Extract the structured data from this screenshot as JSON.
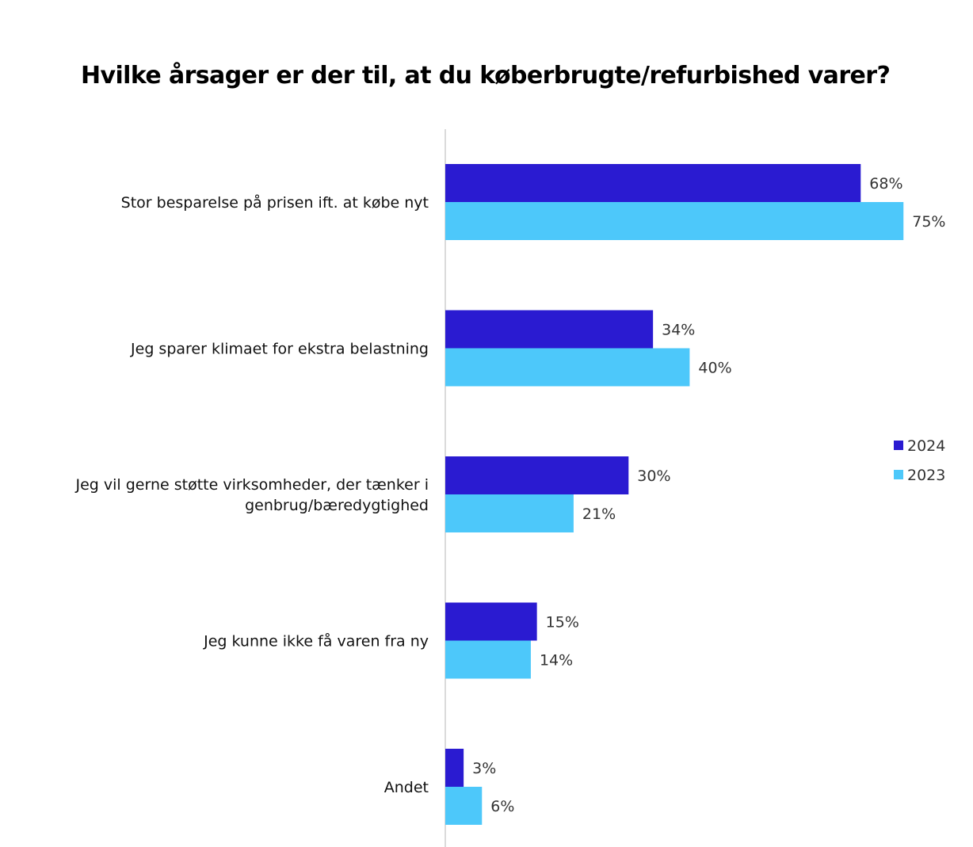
{
  "chart_data": {
    "type": "bar",
    "orientation": "horizontal",
    "title": "Hvilke årsager er der til, at du køberbrugte/refurbished varer?",
    "categories": [
      [
        "Stor besparelse på prisen ift. at købe nyt"
      ],
      [
        "Jeg sparer klimaet for ekstra belastning"
      ],
      [
        "Jeg vil gerne støtte virksomheder, der tænker i",
        "genbrug/bæredygtighed"
      ],
      [
        "Jeg kunne ikke få varen fra ny"
      ],
      [
        "Andet"
      ]
    ],
    "series": [
      {
        "name": "2024",
        "color": "#2a1bd1",
        "values": [
          68,
          34,
          30,
          15,
          3
        ],
        "labels": [
          "68%",
          "34%",
          "30%",
          "15%",
          "3%"
        ]
      },
      {
        "name": "2023",
        "color": "#4dc8fa",
        "values": [
          75,
          40,
          21,
          14,
          6
        ],
        "labels": [
          "75%",
          "40%",
          "21%",
          "14%",
          "6%"
        ]
      }
    ],
    "xlim": [
      0,
      80
    ],
    "unit": "%",
    "xlabel": "",
    "ylabel": "",
    "grid": false,
    "legend_position": "right"
  }
}
